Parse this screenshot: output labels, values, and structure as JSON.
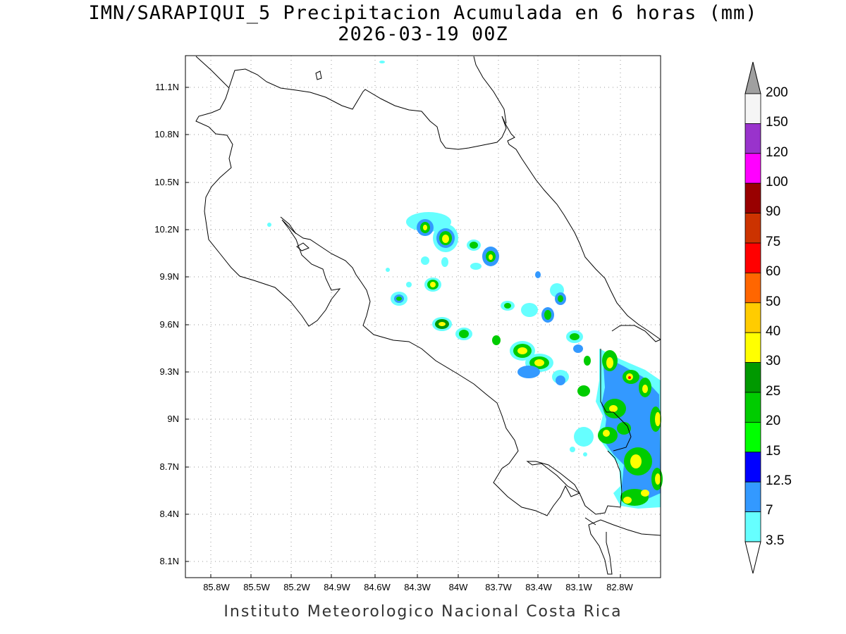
{
  "title": {
    "line1": "IMN/SARAPIQUI_5 Precipitacion Acumulada en 6 horas (mm)",
    "line2": "2026-03-19 00Z"
  },
  "footer": "Instituto Meteorologico Nacional Costa Rica",
  "map": {
    "lat_labels": [
      "11.1N",
      "10.8N",
      "10.5N",
      "10.2N",
      "9.9N",
      "9.6N",
      "9.3N",
      "9N",
      "8.7N",
      "8.4N",
      "8.1N"
    ],
    "lon_labels": [
      "85.8W",
      "85.5W",
      "85.2W",
      "84.9W",
      "84.6W",
      "84.3W",
      "84W",
      "83.7W",
      "83.4W",
      "83.1W",
      "82.8W"
    ]
  },
  "colorbar": {
    "levels": [
      "200",
      "150",
      "120",
      "100",
      "90",
      "75",
      "60",
      "50",
      "40",
      "30",
      "25",
      "20",
      "15",
      "12.5",
      "7",
      "3.5"
    ],
    "colors": [
      "#f5f5f5",
      "#9933cc",
      "#ff00ff",
      "#990000",
      "#cc3300",
      "#ff0000",
      "#ff6600",
      "#ffcc00",
      "#ffff00",
      "#009900",
      "#00cc00",
      "#00ff00",
      "#0000ff",
      "#3399ff",
      "#66ffff"
    ],
    "over_color": "#a0a0a0",
    "under_color": "#ffffff"
  }
}
